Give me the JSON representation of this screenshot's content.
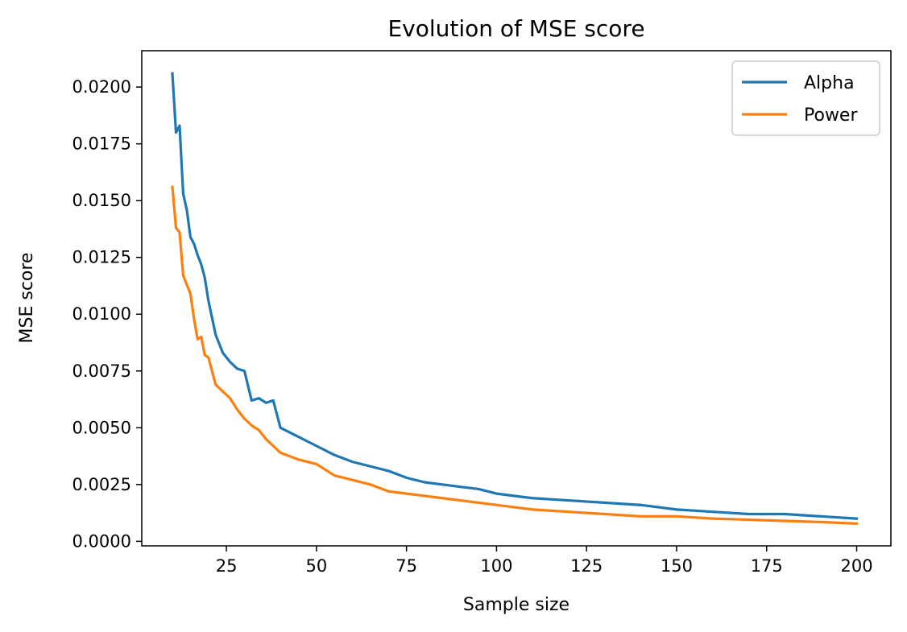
{
  "chart_data": {
    "type": "line",
    "title": "Evolution of MSE score",
    "xlabel": "Sample size",
    "ylabel": "MSE score",
    "xlim": [
      1.5,
      209.5
    ],
    "ylim": [
      -0.0002,
      0.0216
    ],
    "xticks": [
      25,
      50,
      75,
      100,
      125,
      150,
      175,
      200
    ],
    "yticks": [
      0.0,
      0.0025,
      0.005,
      0.0075,
      0.01,
      0.0125,
      0.015,
      0.0175,
      0.02
    ],
    "xtick_labels": [
      "25",
      "50",
      "75",
      "100",
      "125",
      "150",
      "175",
      "200"
    ],
    "ytick_labels": [
      "0.0000",
      "0.0025",
      "0.0050",
      "0.0075",
      "0.0100",
      "0.0125",
      "0.0150",
      "0.0175",
      "0.0200"
    ],
    "grid": false,
    "legend_position": "top-right",
    "x": [
      10,
      11,
      12,
      13,
      14,
      15,
      16,
      17,
      18,
      19,
      20,
      22,
      24,
      26,
      28,
      30,
      32,
      34,
      36,
      38,
      40,
      45,
      50,
      55,
      60,
      65,
      70,
      75,
      80,
      85,
      90,
      95,
      100,
      110,
      120,
      130,
      140,
      150,
      160,
      170,
      180,
      190,
      200
    ],
    "series": [
      {
        "name": "Alpha",
        "color": "#1f77b4",
        "values": [
          0.0206,
          0.018,
          0.0183,
          0.0153,
          0.0146,
          0.0134,
          0.0131,
          0.0126,
          0.0122,
          0.0116,
          0.0106,
          0.0091,
          0.0083,
          0.0079,
          0.0076,
          0.0075,
          0.0062,
          0.0063,
          0.0061,
          0.0062,
          0.005,
          0.0046,
          0.0042,
          0.0038,
          0.0035,
          0.0033,
          0.0031,
          0.0028,
          0.0026,
          0.0025,
          0.0024,
          0.0023,
          0.0021,
          0.0019,
          0.0018,
          0.0017,
          0.0016,
          0.0014,
          0.0013,
          0.0012,
          0.0012,
          0.0011,
          0.001
        ]
      },
      {
        "name": "Power",
        "color": "#ff7f0e",
        "values": [
          0.0156,
          0.0138,
          0.0136,
          0.0117,
          0.0113,
          0.0109,
          0.0098,
          0.0089,
          0.009,
          0.0082,
          0.0081,
          0.0069,
          0.0066,
          0.0063,
          0.0058,
          0.0054,
          0.0051,
          0.0049,
          0.0045,
          0.0042,
          0.0039,
          0.0036,
          0.0034,
          0.0029,
          0.0027,
          0.0025,
          0.0022,
          0.0021,
          0.002,
          0.0019,
          0.0018,
          0.0017,
          0.0016,
          0.0014,
          0.0013,
          0.0012,
          0.0011,
          0.0011,
          0.001,
          0.00095,
          0.0009,
          0.00085,
          0.00078
        ]
      }
    ]
  }
}
